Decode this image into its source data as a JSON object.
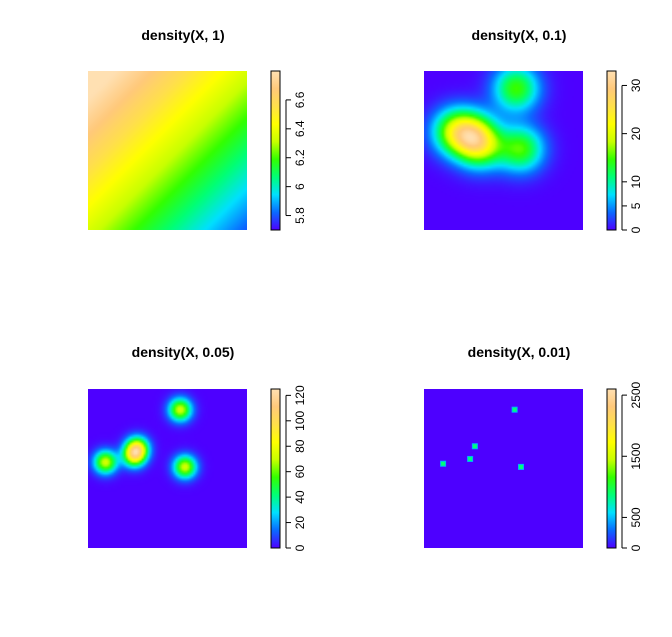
{
  "colors": {
    "palette": [
      "#4d00ff",
      "#0a6aff",
      "#00e0ff",
      "#00ff77",
      "#33ff00",
      "#c8ff00",
      "#ffff00",
      "#ffe04a",
      "#ffc97a",
      "#ffe0b2"
    ],
    "palette_names": "topo-like: purple-blue, blue, cyan, green, yellow-green, yellow, light orange, cream"
  },
  "chart_data": [
    {
      "type": "heatmap",
      "title": "density(X, 1)",
      "zlim": [
        5.7,
        6.8
      ],
      "colorbar_ticks": [
        5.8,
        6,
        6.2,
        6.4,
        6.6
      ],
      "field": {
        "kind": "linear",
        "base": 6.35,
        "gx": -0.55,
        "gy": 0.55
      },
      "points": []
    },
    {
      "type": "heatmap",
      "title": "density(X, 0.1)",
      "zlim": [
        0,
        33
      ],
      "colorbar_ticks": [
        0,
        5,
        10,
        20,
        30
      ],
      "field": {
        "kind": "gauss",
        "sigma": 0.1
      },
      "points": [
        [
          0.19,
          0.62
        ],
        [
          0.3,
          0.6
        ],
        [
          0.36,
          0.53
        ],
        [
          0.58,
          0.89
        ],
        [
          0.61,
          0.51
        ]
      ],
      "weight": 1.0
    },
    {
      "type": "heatmap",
      "title": "density(X, 0.05)",
      "zlim": [
        0,
        125
      ],
      "colorbar_ticks": [
        0,
        20,
        40,
        60,
        80,
        100,
        120
      ],
      "field": {
        "kind": "gauss",
        "sigma": 0.05
      },
      "points": [
        [
          0.11,
          0.54
        ],
        [
          0.29,
          0.58
        ],
        [
          0.31,
          0.63
        ],
        [
          0.58,
          0.87
        ],
        [
          0.61,
          0.51
        ]
      ],
      "weight": 1.0
    },
    {
      "type": "heatmap",
      "title": "density(X, 0.01)",
      "zlim": [
        0,
        2600
      ],
      "colorbar_ticks": [
        0,
        500,
        1500,
        2500
      ],
      "field": {
        "kind": "dots"
      },
      "points": [
        [
          0.12,
          0.53
        ],
        [
          0.29,
          0.56
        ],
        [
          0.32,
          0.64
        ],
        [
          0.57,
          0.87
        ],
        [
          0.61,
          0.51
        ]
      ],
      "weight": 1.0
    }
  ]
}
